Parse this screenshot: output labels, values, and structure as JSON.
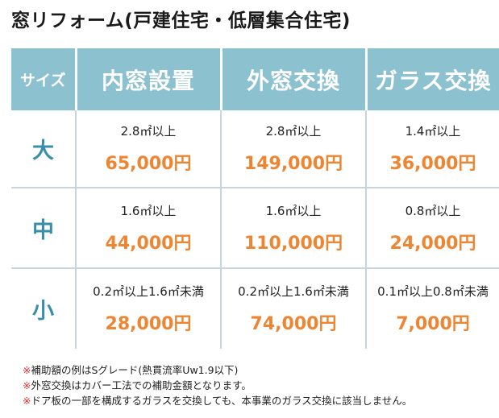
{
  "title": "窓リフォーム(戸建住宅・低層集合住宅)",
  "table": {
    "header": {
      "size": "サイズ",
      "columns": [
        "内窓設置",
        "外窓交換",
        "ガラス交換"
      ]
    },
    "rows": [
      {
        "size": "大",
        "cells": [
          {
            "condition": "2.8㎡以上",
            "price": "65,000円"
          },
          {
            "condition": "2.8㎡以上",
            "price": "149,000円"
          },
          {
            "condition": "1.4㎡以上",
            "price": "36,000円"
          }
        ]
      },
      {
        "size": "中",
        "cells": [
          {
            "condition": "1.6㎡以上",
            "price": "44,000円"
          },
          {
            "condition": "1.6㎡以上",
            "price": "110,000円"
          },
          {
            "condition": "0.8㎡以上",
            "price": "24,000円"
          }
        ]
      },
      {
        "size": "小",
        "cells": [
          {
            "condition": "0.2㎡以上1.6㎡未満",
            "price": "28,000円"
          },
          {
            "condition": "0.2㎡以上1.6㎡未満",
            "price": "74,000円"
          },
          {
            "condition": "0.1㎡以上0.8㎡未満",
            "price": "7,000円"
          }
        ]
      }
    ]
  },
  "notes": [
    {
      "mark": "※",
      "text": "補助額の例はSグレード(熱貫流率Uw1.9以下)"
    },
    {
      "mark": "※",
      "text": "外窓交換はカバー工法での補助金額となります。"
    },
    {
      "mark": "※",
      "text": "ドア板の一部を構成するガラスを交換しても、本事業のガラス交換に該当しません。"
    }
  ],
  "colors": {
    "header_bg": "#8cc1d0",
    "size_label": "#3a8fa8",
    "price": "#ee8532",
    "note_mark": "#e03030"
  }
}
